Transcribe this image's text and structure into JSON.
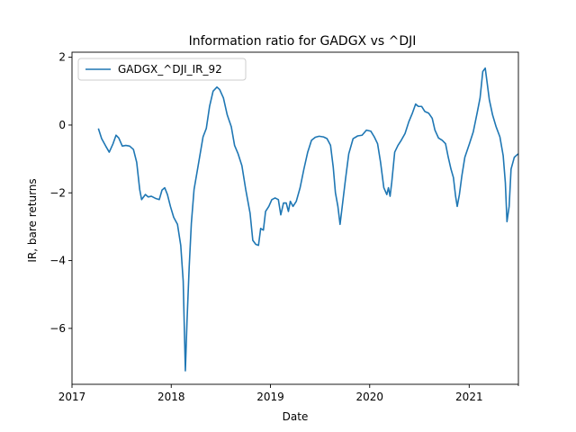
{
  "chart_data": {
    "type": "line",
    "title": "Information ratio for GADGX vs ^DJI",
    "xlabel": "Date",
    "ylabel": "IR, bare returns",
    "xlim": [
      "2017-01-01",
      "2021-07-01"
    ],
    "ylim": [
      -7.65,
      2.15
    ],
    "x_ticks": [
      {
        "value": "2017-01-01",
        "label": "2017"
      },
      {
        "value": "2018-01-01",
        "label": "2018"
      },
      {
        "value": "2019-01-01",
        "label": "2019"
      },
      {
        "value": "2020-01-01",
        "label": "2020"
      },
      {
        "value": "2021-01-01",
        "label": "2021"
      }
    ],
    "y_ticks": [
      {
        "value": 2,
        "label": "2"
      },
      {
        "value": 0,
        "label": "0"
      },
      {
        "value": -2,
        "label": "−2"
      },
      {
        "value": -4,
        "label": "−4"
      },
      {
        "value": -6,
        "label": "−6"
      }
    ],
    "grid": false,
    "legend": "upper-left",
    "series": [
      {
        "name": "GADGX_^DJI_IR_92",
        "color": "#1f77b4",
        "points": [
          [
            "2017-04-08",
            -0.1
          ],
          [
            "2017-04-20",
            -0.4
          ],
          [
            "2017-05-05",
            -0.62
          ],
          [
            "2017-05-18",
            -0.8
          ],
          [
            "2017-06-01",
            -0.55
          ],
          [
            "2017-06-12",
            -0.3
          ],
          [
            "2017-06-22",
            -0.38
          ],
          [
            "2017-07-05",
            -0.62
          ],
          [
            "2017-07-18",
            -0.6
          ],
          [
            "2017-08-01",
            -0.62
          ],
          [
            "2017-08-15",
            -0.72
          ],
          [
            "2017-08-27",
            -1.1
          ],
          [
            "2017-09-07",
            -1.9
          ],
          [
            "2017-09-14",
            -2.2
          ],
          [
            "2017-09-28",
            -2.05
          ],
          [
            "2017-10-08",
            -2.12
          ],
          [
            "2017-10-20",
            -2.1
          ],
          [
            "2017-11-06",
            -2.17
          ],
          [
            "2017-11-18",
            -2.2
          ],
          [
            "2017-11-28",
            -1.92
          ],
          [
            "2017-12-08",
            -1.85
          ],
          [
            "2017-12-18",
            -2.05
          ],
          [
            "2017-12-29",
            -2.4
          ],
          [
            "2018-01-10",
            -2.72
          ],
          [
            "2018-01-24",
            -2.93
          ],
          [
            "2018-02-05",
            -3.55
          ],
          [
            "2018-02-14",
            -4.6
          ],
          [
            "2018-02-22",
            -7.25
          ],
          [
            "2018-02-28",
            -5.8
          ],
          [
            "2018-03-08",
            -4.2
          ],
          [
            "2018-03-16",
            -2.9
          ],
          [
            "2018-03-26",
            -1.9
          ],
          [
            "2018-04-10",
            -1.2
          ],
          [
            "2018-04-28",
            -0.35
          ],
          [
            "2018-05-10",
            -0.1
          ],
          [
            "2018-05-22",
            0.55
          ],
          [
            "2018-06-04",
            1.0
          ],
          [
            "2018-06-18",
            1.12
          ],
          [
            "2018-06-28",
            1.05
          ],
          [
            "2018-07-12",
            0.8
          ],
          [
            "2018-07-26",
            0.3
          ],
          [
            "2018-08-10",
            -0.05
          ],
          [
            "2018-08-22",
            -0.6
          ],
          [
            "2018-09-04",
            -0.85
          ],
          [
            "2018-09-18",
            -1.2
          ],
          [
            "2018-10-02",
            -1.9
          ],
          [
            "2018-10-18",
            -2.6
          ],
          [
            "2018-10-28",
            -3.4
          ],
          [
            "2018-11-08",
            -3.52
          ],
          [
            "2018-11-18",
            -3.55
          ],
          [
            "2018-11-26",
            -3.05
          ],
          [
            "2018-12-06",
            -3.1
          ],
          [
            "2018-12-14",
            -2.55
          ],
          [
            "2018-12-26",
            -2.4
          ],
          [
            "2019-01-06",
            -2.2
          ],
          [
            "2019-01-18",
            -2.15
          ],
          [
            "2019-01-30",
            -2.2
          ],
          [
            "2019-02-08",
            -2.65
          ],
          [
            "2019-02-18",
            -2.3
          ],
          [
            "2019-02-28",
            -2.3
          ],
          [
            "2019-03-08",
            -2.55
          ],
          [
            "2019-03-15",
            -2.25
          ],
          [
            "2019-03-25",
            -2.4
          ],
          [
            "2019-04-06",
            -2.25
          ],
          [
            "2019-04-20",
            -1.85
          ],
          [
            "2019-05-04",
            -1.3
          ],
          [
            "2019-05-18",
            -0.8
          ],
          [
            "2019-06-01",
            -0.45
          ],
          [
            "2019-06-15",
            -0.36
          ],
          [
            "2019-06-29",
            -0.33
          ],
          [
            "2019-07-15",
            -0.35
          ],
          [
            "2019-07-28",
            -0.4
          ],
          [
            "2019-08-10",
            -0.6
          ],
          [
            "2019-08-20",
            -1.25
          ],
          [
            "2019-08-28",
            -2.0
          ],
          [
            "2019-09-06",
            -2.4
          ],
          [
            "2019-09-14",
            -2.93
          ],
          [
            "2019-09-22",
            -2.4
          ],
          [
            "2019-10-04",
            -1.6
          ],
          [
            "2019-10-16",
            -0.85
          ],
          [
            "2019-11-01",
            -0.4
          ],
          [
            "2019-11-18",
            -0.32
          ],
          [
            "2019-12-04",
            -0.3
          ],
          [
            "2019-12-20",
            -0.15
          ],
          [
            "2020-01-05",
            -0.18
          ],
          [
            "2020-01-18",
            -0.35
          ],
          [
            "2020-01-30",
            -0.55
          ],
          [
            "2020-02-10",
            -1.1
          ],
          [
            "2020-02-22",
            -1.85
          ],
          [
            "2020-03-04",
            -2.05
          ],
          [
            "2020-03-10",
            -1.85
          ],
          [
            "2020-03-16",
            -2.1
          ],
          [
            "2020-03-22",
            -1.7
          ],
          [
            "2020-04-02",
            -0.8
          ],
          [
            "2020-04-14",
            -0.6
          ],
          [
            "2020-04-26",
            -0.45
          ],
          [
            "2020-05-10",
            -0.25
          ],
          [
            "2020-05-24",
            0.1
          ],
          [
            "2020-06-06",
            0.35
          ],
          [
            "2020-06-18",
            0.62
          ],
          [
            "2020-06-28",
            0.55
          ],
          [
            "2020-07-10",
            0.55
          ],
          [
            "2020-07-22",
            0.4
          ],
          [
            "2020-08-05",
            0.35
          ],
          [
            "2020-08-18",
            0.2
          ],
          [
            "2020-08-28",
            -0.15
          ],
          [
            "2020-09-10",
            -0.38
          ],
          [
            "2020-09-24",
            -0.45
          ],
          [
            "2020-10-06",
            -0.55
          ],
          [
            "2020-10-16",
            -0.95
          ],
          [
            "2020-10-26",
            -1.3
          ],
          [
            "2020-11-04",
            -1.55
          ],
          [
            "2020-11-12",
            -2.1
          ],
          [
            "2020-11-18",
            -2.4
          ],
          [
            "2020-11-26",
            -2.05
          ],
          [
            "2020-12-05",
            -1.5
          ],
          [
            "2020-12-16",
            -0.95
          ],
          [
            "2021-01-02",
            -0.55
          ],
          [
            "2021-01-16",
            -0.2
          ],
          [
            "2021-01-30",
            0.35
          ],
          [
            "2021-02-10",
            0.8
          ],
          [
            "2021-02-20",
            1.58
          ],
          [
            "2021-03-01",
            1.68
          ],
          [
            "2021-03-08",
            1.25
          ],
          [
            "2021-03-16",
            0.75
          ],
          [
            "2021-03-28",
            0.3
          ],
          [
            "2021-04-10",
            -0.05
          ],
          [
            "2021-04-24",
            -0.35
          ],
          [
            "2021-05-06",
            -0.9
          ],
          [
            "2021-05-14",
            -1.7
          ],
          [
            "2021-05-20",
            -2.85
          ],
          [
            "2021-05-28",
            -2.4
          ],
          [
            "2021-06-04",
            -1.3
          ],
          [
            "2021-06-16",
            -0.95
          ],
          [
            "2021-06-30",
            -0.85
          ]
        ]
      }
    ]
  }
}
